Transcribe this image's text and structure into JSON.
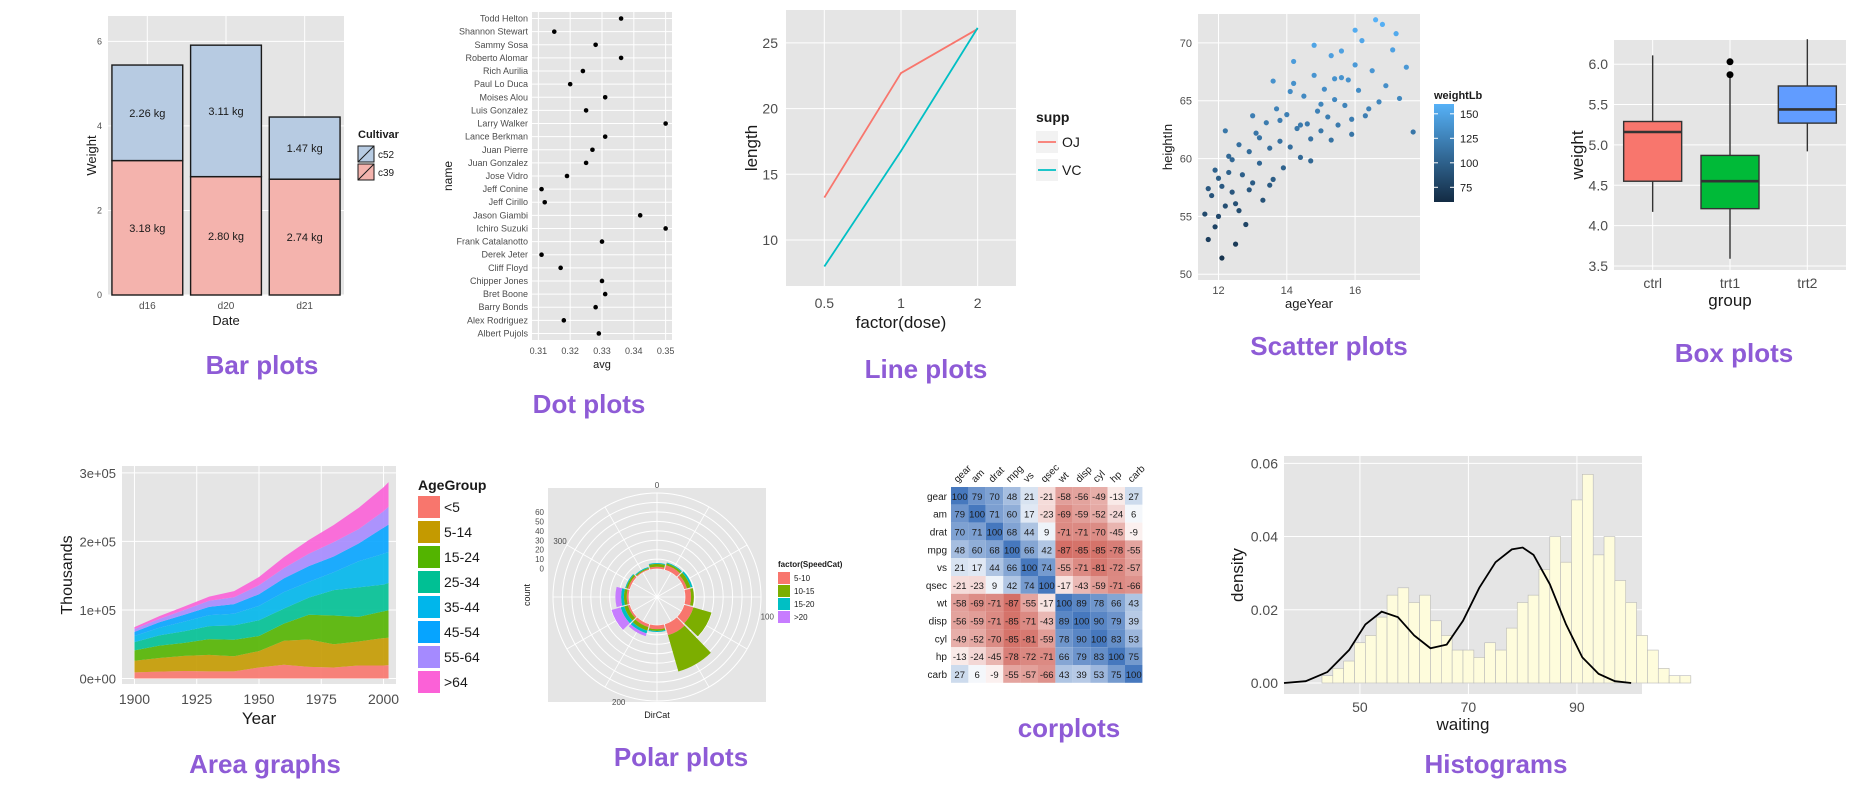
{
  "captions": {
    "bar": "Bar plots",
    "dot": "Dot plots",
    "line": "Line plots",
    "scatter": "Scatter plots",
    "box": "Box plots",
    "area": "Area graphs",
    "polar": "Polar plots",
    "corr": "corplots",
    "hist": "Histograms"
  },
  "colors": {
    "panel_bg": "#e5e5e5",
    "grid": "#ffffff",
    "caption": "#8e5bd6"
  },
  "chart_data": [
    {
      "id": "bar",
      "type": "bar",
      "stacked": true,
      "categories": [
        "d16",
        "d20",
        "d21"
      ],
      "xlabel": "Date",
      "ylabel": "Weight",
      "ylim": [
        0,
        6.6
      ],
      "yticks": [
        0,
        2,
        4,
        6
      ],
      "legend_title": "Cultivar",
      "series": [
        {
          "name": "c39",
          "values": [
            3.18,
            2.8,
            2.74
          ],
          "labels": [
            "3.18 kg",
            "2.80 kg",
            "2.74 kg"
          ],
          "color": "#f4b3ad"
        },
        {
          "name": "c52",
          "values": [
            2.26,
            3.11,
            1.47
          ],
          "labels": [
            "2.26 kg",
            "3.11 kg",
            "1.47 kg"
          ],
          "color": "#b7cbe2"
        }
      ]
    },
    {
      "id": "dot",
      "type": "scatter",
      "xlabel": "avg",
      "ylabel": "name",
      "xlim": [
        0.308,
        0.352
      ],
      "xticks": [
        0.31,
        0.32,
        0.33,
        0.34,
        0.35
      ],
      "xtick_labels": [
        "0.31",
        "0.32",
        "0.33",
        "0.34",
        "0.35"
      ],
      "names": [
        "Todd Helton",
        "Shannon Stewart",
        "Sammy Sosa",
        "Roberto Alomar",
        "Rich Aurilia",
        "Paul Lo Duca",
        "Moises Alou",
        "Luis Gonzalez",
        "Larry Walker",
        "Lance Berkman",
        "Juan Pierre",
        "Juan Gonzalez",
        "Jose Vidro",
        "Jeff Conine",
        "Jeff Cirillo",
        "Jason Giambi",
        "Ichiro Suzuki",
        "Frank Catalanotto",
        "Derek Jeter",
        "Cliff Floyd",
        "Chipper Jones",
        "Bret Boone",
        "Barry Bonds",
        "Alex Rodriguez",
        "Albert Pujols"
      ],
      "values": [
        0.336,
        0.315,
        0.328,
        0.336,
        0.324,
        0.32,
        0.331,
        0.325,
        0.35,
        0.331,
        0.327,
        0.325,
        0.319,
        0.311,
        0.312,
        0.342,
        0.35,
        0.33,
        0.311,
        0.317,
        0.33,
        0.331,
        0.328,
        0.318,
        0.329
      ]
    },
    {
      "id": "line",
      "type": "line",
      "x": [
        0.5,
        1,
        2
      ],
      "xtick_labels": [
        "0.5",
        "1",
        "2"
      ],
      "xlabel": "factor(dose)",
      "ylabel": "length",
      "ylim": [
        6.5,
        27.5
      ],
      "yticks": [
        10,
        15,
        20,
        25
      ],
      "legend_title": "supp",
      "series": [
        {
          "name": "OJ",
          "values": [
            13.23,
            22.7,
            26.06
          ],
          "color": "#f8766d"
        },
        {
          "name": "VC",
          "values": [
            7.98,
            16.77,
            26.14
          ],
          "color": "#00bfc4"
        }
      ]
    },
    {
      "id": "scatter",
      "type": "scatter",
      "xlabel": "ageYear",
      "ylabel": "heightIn",
      "xlim": [
        11.4,
        17.9
      ],
      "ylim": [
        49.5,
        72.5
      ],
      "xticks": [
        12,
        14,
        16
      ],
      "yticks": [
        50,
        55,
        60,
        65,
        70
      ],
      "legend_title": "weightLb",
      "legend_ticks": [
        75,
        100,
        125,
        150
      ],
      "points": [
        [
          11.6,
          55.2
        ],
        [
          11.7,
          53.0
        ],
        [
          11.8,
          56.8
        ],
        [
          11.9,
          54.1
        ],
        [
          12.0,
          58.3
        ],
        [
          12.1,
          51.4
        ],
        [
          12.2,
          55.9
        ],
        [
          12.3,
          60.2
        ],
        [
          12.4,
          57.1
        ],
        [
          12.5,
          52.6
        ],
        [
          11.7,
          57.4
        ],
        [
          11.9,
          59.0
        ],
        [
          12.0,
          55.0
        ],
        [
          12.2,
          62.4
        ],
        [
          12.3,
          58.8
        ],
        [
          12.5,
          56.1
        ],
        [
          12.6,
          61.2
        ],
        [
          12.7,
          58.6
        ],
        [
          12.8,
          54.3
        ],
        [
          12.9,
          60.6
        ],
        [
          13.0,
          57.9
        ],
        [
          13.1,
          62.2
        ],
        [
          13.2,
          59.6
        ],
        [
          13.3,
          56.4
        ],
        [
          13.4,
          63.1
        ],
        [
          13.5,
          60.9
        ],
        [
          13.6,
          58.2
        ],
        [
          13.7,
          64.3
        ],
        [
          13.8,
          61.5
        ],
        [
          13.9,
          59.2
        ],
        [
          14.0,
          63.8
        ],
        [
          14.1,
          61.0
        ],
        [
          14.2,
          66.5
        ],
        [
          14.3,
          62.6
        ],
        [
          14.4,
          60.1
        ],
        [
          14.5,
          65.4
        ],
        [
          14.6,
          63.0
        ],
        [
          14.7,
          61.7
        ],
        [
          14.8,
          67.2
        ],
        [
          14.9,
          64.1
        ],
        [
          15.0,
          62.4
        ],
        [
          15.1,
          66.0
        ],
        [
          15.2,
          63.6
        ],
        [
          15.3,
          68.9
        ],
        [
          15.4,
          65.1
        ],
        [
          15.5,
          62.9
        ],
        [
          15.6,
          67.0
        ],
        [
          15.7,
          64.6
        ],
        [
          15.8,
          66.8
        ],
        [
          15.9,
          63.4
        ],
        [
          16.0,
          68.1
        ],
        [
          16.1,
          65.9
        ],
        [
          16.3,
          63.7
        ],
        [
          16.5,
          67.6
        ],
        [
          16.7,
          64.9
        ],
        [
          16.9,
          66.3
        ],
        [
          17.1,
          69.4
        ],
        [
          17.3,
          65.2
        ],
        [
          17.5,
          67.9
        ],
        [
          17.7,
          62.3
        ],
        [
          12.1,
          57.6
        ],
        [
          12.4,
          59.9
        ],
        [
          12.6,
          55.5
        ],
        [
          12.9,
          57.3
        ],
        [
          13.2,
          61.8
        ],
        [
          13.5,
          57.7
        ],
        [
          13.8,
          63.3
        ],
        [
          14.1,
          65.8
        ],
        [
          14.4,
          62.9
        ],
        [
          14.7,
          59.8
        ],
        [
          15.0,
          64.7
        ],
        [
          15.3,
          61.6
        ],
        [
          15.6,
          69.3
        ],
        [
          15.9,
          62.1
        ],
        [
          16.2,
          70.2
        ],
        [
          16.4,
          64.3
        ],
        [
          16.8,
          71.6
        ],
        [
          17.2,
          70.8
        ],
        [
          13.0,
          63.7
        ],
        [
          13.6,
          66.7
        ],
        [
          14.2,
          68.4
        ],
        [
          14.8,
          69.8
        ],
        [
          15.4,
          66.9
        ],
        [
          16.0,
          71.1
        ],
        [
          16.6,
          72.0
        ]
      ]
    },
    {
      "id": "box",
      "type": "box",
      "categories": [
        "ctrl",
        "trt1",
        "trt2"
      ],
      "xlabel": "group",
      "ylabel": "weight",
      "ylim": [
        3.45,
        6.3
      ],
      "yticks": [
        3.5,
        4.0,
        4.5,
        5.0,
        5.5,
        6.0
      ],
      "ytick_labels": [
        "3.5",
        "4.0",
        "4.5",
        "5.0",
        "5.5",
        "6.0"
      ],
      "boxes": [
        {
          "min": 4.17,
          "q1": 4.55,
          "median": 5.16,
          "q3": 5.29,
          "max": 6.11,
          "outliers": [],
          "color": "#f8766d"
        },
        {
          "min": 3.59,
          "q1": 4.21,
          "median": 4.55,
          "q3": 4.87,
          "max": 5.87,
          "outliers": [
            6.03,
            5.87
          ],
          "color": "#00ba38"
        },
        {
          "min": 4.92,
          "q1": 5.27,
          "median": 5.44,
          "q3": 5.73,
          "max": 6.31,
          "outliers": [],
          "color": "#619cff"
        }
      ]
    },
    {
      "id": "area",
      "type": "area",
      "stacked": true,
      "xlabel": "Year",
      "ylabel": "Thousands",
      "xlim": [
        1895,
        2005
      ],
      "ylim": [
        -8000,
        310000
      ],
      "xticks": [
        1900,
        1925,
        1950,
        1975,
        2000
      ],
      "yticks": [
        0,
        100000,
        200000,
        300000
      ],
      "ytick_labels": [
        "0e+00",
        "1e+05",
        "2e+05",
        "3e+05"
      ],
      "legend_title": "AgeGroup",
      "x": [
        1900,
        1910,
        1920,
        1930,
        1940,
        1950,
        1960,
        1970,
        1980,
        1990,
        2000,
        2002
      ],
      "series": [
        {
          "name": "<5",
          "color": "#f8766d",
          "values": [
            9000,
            10000,
            11000,
            10500,
            10500,
            16000,
            20000,
            17000,
            16000,
            19000,
            19000,
            19500
          ]
        },
        {
          "name": "5-14",
          "color": "#c49a00",
          "values": [
            17000,
            20000,
            22000,
            24000,
            22000,
            24000,
            35000,
            40000,
            34000,
            35000,
            40000,
            40000
          ]
        },
        {
          "name": "15-24",
          "color": "#53b400",
          "values": [
            15000,
            18000,
            19000,
            23000,
            24000,
            22000,
            25000,
            36000,
            42000,
            36000,
            39000,
            40000
          ]
        },
        {
          "name": "25-34",
          "color": "#00c094",
          "values": [
            12000,
            15000,
            17000,
            19000,
            21000,
            23000,
            22000,
            25000,
            37000,
            43000,
            39000,
            40000
          ]
        },
        {
          "name": "35-44",
          "color": "#00b6eb",
          "values": [
            9000,
            11000,
            14000,
            16000,
            17000,
            21000,
            24000,
            23000,
            26000,
            38000,
            45000,
            45000
          ]
        },
        {
          "name": "45-54",
          "color": "#06a4ff",
          "values": [
            6000,
            8000,
            10000,
            12000,
            14000,
            17000,
            20000,
            23000,
            23000,
            26000,
            38000,
            40000
          ]
        },
        {
          "name": "55-64",
          "color": "#a58aff",
          "values": [
            4000,
            5000,
            7000,
            9000,
            10000,
            13000,
            15000,
            18000,
            21000,
            21000,
            24000,
            26000
          ]
        },
        {
          "name": ">64",
          "color": "#fb61d7",
          "values": [
            3000,
            4000,
            5000,
            6000,
            9000,
            12000,
            16000,
            20000,
            25000,
            31000,
            35000,
            36000
          ]
        }
      ]
    },
    {
      "id": "polar",
      "type": "bar",
      "coord": "polar",
      "xlabel": "DirCat",
      "ylabel": "count",
      "rlim": [
        -30,
        80
      ],
      "rticks": [
        0,
        10,
        20,
        30,
        40,
        50,
        60
      ],
      "angle_labels": [
        "0",
        "100",
        "200",
        "300"
      ],
      "legend_title": "factor(SpeedCat)",
      "legend_entries": [
        {
          "name": "5-10",
          "color": "#f8766d"
        },
        {
          "name": "10-15",
          "color": "#7cae00"
        },
        {
          "name": "15-20",
          "color": "#00bfc4"
        },
        {
          "name": ">20",
          "color": "#c77cff"
        }
      ],
      "bars": [
        {
          "dir": 0,
          "segments": [
            2,
            3,
            1,
            0
          ]
        },
        {
          "dir": 30,
          "segments": [
            5,
            2,
            1,
            0
          ]
        },
        {
          "dir": 60,
          "segments": [
            3,
            4,
            2,
            0
          ]
        },
        {
          "dir": 90,
          "segments": [
            6,
            3,
            0,
            0
          ]
        },
        {
          "dir": 120,
          "segments": [
            10,
            20,
            0,
            0
          ]
        },
        {
          "dir": 150,
          "segments": [
            12,
            40,
            0,
            0
          ]
        },
        {
          "dir": 180,
          "segments": [
            4,
            2,
            1,
            0
          ]
        },
        {
          "dir": 210,
          "segments": [
            3,
            4,
            3,
            3
          ]
        },
        {
          "dir": 240,
          "segments": [
            2,
            4,
            4,
            10
          ]
        },
        {
          "dir": 270,
          "segments": [
            2,
            3,
            3,
            6
          ]
        },
        {
          "dir": 300,
          "segments": [
            2,
            2,
            1,
            0
          ]
        },
        {
          "dir": 330,
          "segments": [
            1,
            1,
            1,
            0
          ]
        }
      ]
    },
    {
      "id": "corr",
      "type": "heatmap",
      "labels": [
        "gear",
        "am",
        "drat",
        "mpg",
        "vs",
        "qsec",
        "wt",
        "disp",
        "cyl",
        "hp",
        "carb"
      ],
      "matrix": [
        [
          100,
          79,
          70,
          48,
          21,
          -21,
          -58,
          -56,
          -49,
          -13,
          27
        ],
        [
          79,
          100,
          71,
          60,
          17,
          -23,
          -69,
          -59,
          -52,
          -24,
          6
        ],
        [
          70,
          71,
          100,
          68,
          44,
          9,
          -71,
          -71,
          -70,
          -45,
          -9
        ],
        [
          48,
          60,
          68,
          100,
          66,
          42,
          -87,
          -85,
          -85,
          -78,
          -55
        ],
        [
          21,
          17,
          44,
          66,
          100,
          74,
          -55,
          -71,
          -81,
          -72,
          -57
        ],
        [
          -21,
          -23,
          9,
          42,
          74,
          100,
          -17,
          -43,
          -59,
          -71,
          -66
        ],
        [
          -58,
          -69,
          -71,
          -87,
          -55,
          -17,
          100,
          89,
          78,
          66,
          43
        ],
        [
          -56,
          -59,
          -71,
          -85,
          -71,
          -43,
          89,
          100,
          90,
          79,
          39
        ],
        [
          -49,
          -52,
          -70,
          -85,
          -81,
          -59,
          78,
          90,
          100,
          83,
          53
        ],
        [
          -13,
          -24,
          -45,
          -78,
          -72,
          -71,
          66,
          79,
          83,
          100,
          75
        ],
        [
          27,
          6,
          -9,
          -55,
          -57,
          -66,
          43,
          39,
          53,
          75,
          100
        ]
      ]
    },
    {
      "id": "hist",
      "type": "bar",
      "subtype": "histogram",
      "xlabel": "waiting",
      "ylabel": "density",
      "xlim": [
        36,
        102
      ],
      "ylim": [
        -0.003,
        0.062
      ],
      "xticks": [
        50,
        70,
        90
      ],
      "yticks": [
        0,
        0.02,
        0.04,
        0.06
      ],
      "ytick_labels": [
        "0.00",
        "0.02",
        "0.04",
        "0.06"
      ],
      "bin_start": 43,
      "bin_width": 2,
      "densities": [
        0.002,
        0.004,
        0.006,
        0.011,
        0.013,
        0.018,
        0.024,
        0.026,
        0.022,
        0.024,
        0.017,
        0.013,
        0.009,
        0.009,
        0.007,
        0.011,
        0.009,
        0.015,
        0.022,
        0.024,
        0.031,
        0.04,
        0.033,
        0.05,
        0.057,
        0.035,
        0.04,
        0.028,
        0.022,
        0.013,
        0.009,
        0.004,
        0.002,
        0.002
      ],
      "density_curve": [
        [
          36,
          0.0
        ],
        [
          40,
          0.0005
        ],
        [
          44,
          0.003
        ],
        [
          48,
          0.009
        ],
        [
          51,
          0.016
        ],
        [
          54,
          0.0195
        ],
        [
          57,
          0.018
        ],
        [
          60,
          0.013
        ],
        [
          63,
          0.0095
        ],
        [
          66,
          0.0105
        ],
        [
          69,
          0.017
        ],
        [
          72,
          0.026
        ],
        [
          75,
          0.033
        ],
        [
          78,
          0.0365
        ],
        [
          80,
          0.037
        ],
        [
          82,
          0.035
        ],
        [
          85,
          0.027
        ],
        [
          88,
          0.016
        ],
        [
          91,
          0.007
        ],
        [
          94,
          0.0025
        ],
        [
          97,
          0.0005
        ],
        [
          100,
          0.0
        ]
      ]
    }
  ]
}
